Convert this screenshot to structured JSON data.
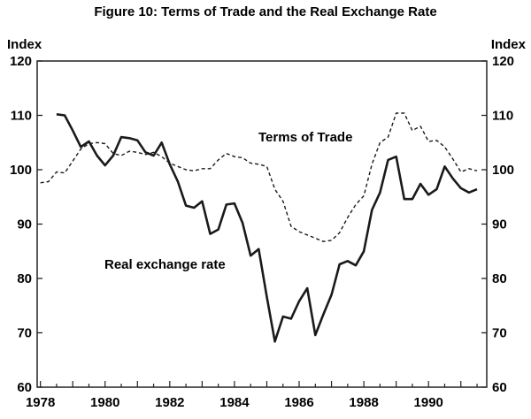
{
  "chart_data": {
    "type": "line",
    "title": "Figure 10: Terms of Trade and the Real Exchange Rate",
    "ylabel_left": "Index",
    "ylabel_right": "Index",
    "ylim": [
      60,
      120
    ],
    "xlim": [
      1977.9,
      1991.8
    ],
    "y_ticks": [
      60,
      70,
      80,
      90,
      100,
      110,
      120
    ],
    "x_ticks": [
      1978,
      1980,
      1982,
      1984,
      1986,
      1988,
      1990
    ],
    "grid": false,
    "annotations": [
      {
        "text": "Terms of Trade",
        "series": "tot"
      },
      {
        "text": "Real exchange rate",
        "series": "rer"
      }
    ],
    "series": [
      {
        "key": "rer",
        "style": "solid",
        "x": [
          1978.5,
          1978.75,
          1979.0,
          1979.25,
          1979.5,
          1979.75,
          1980.0,
          1980.25,
          1980.5,
          1980.75,
          1981.0,
          1981.25,
          1981.5,
          1981.75,
          1982.0,
          1982.25,
          1982.5,
          1982.75,
          1983.0,
          1983.25,
          1983.5,
          1983.75,
          1984.0,
          1984.25,
          1984.5,
          1984.75,
          1985.0,
          1985.25,
          1985.5,
          1985.75,
          1986.0,
          1986.25,
          1986.5,
          1986.75,
          1987.0,
          1987.25,
          1987.5,
          1987.75,
          1988.0,
          1988.25,
          1988.5,
          1988.75,
          1989.0,
          1989.25,
          1989.5,
          1989.75,
          1990.0,
          1990.25,
          1990.5,
          1990.75,
          1991.0,
          1991.25,
          1991.5
        ],
        "values": [
          110.2,
          110.0,
          107.2,
          104.2,
          105.2,
          102.6,
          100.8,
          102.6,
          106.0,
          105.8,
          105.4,
          103.2,
          102.6,
          105.0,
          101.0,
          97.8,
          93.4,
          93.0,
          94.2,
          88.2,
          89.0,
          93.6,
          93.8,
          90.2,
          84.2,
          85.4,
          76.6,
          68.4,
          73.0,
          72.6,
          75.8,
          78.2,
          69.6,
          73.4,
          77.0,
          82.6,
          83.2,
          82.4,
          85.0,
          92.6,
          95.8,
          101.8,
          102.4,
          94.6,
          94.6,
          97.4,
          95.4,
          96.4,
          100.6,
          98.4,
          96.6,
          95.8,
          96.4
        ]
      },
      {
        "key": "tot",
        "style": "dashed",
        "x": [
          1978.0,
          1978.25,
          1978.5,
          1978.75,
          1979.0,
          1979.25,
          1979.5,
          1979.75,
          1980.0,
          1980.25,
          1980.5,
          1980.75,
          1981.0,
          1981.25,
          1981.5,
          1981.75,
          1982.0,
          1982.25,
          1982.5,
          1982.75,
          1983.0,
          1983.25,
          1983.5,
          1983.75,
          1984.0,
          1984.25,
          1984.5,
          1984.75,
          1985.0,
          1985.25,
          1985.5,
          1985.75,
          1986.0,
          1986.25,
          1986.5,
          1986.75,
          1987.0,
          1987.25,
          1987.5,
          1987.75,
          1988.0,
          1988.25,
          1988.5,
          1988.75,
          1989.0,
          1989.25,
          1989.5,
          1989.75,
          1990.0,
          1990.25,
          1990.5,
          1990.75,
          1991.0,
          1991.25,
          1991.5
        ],
        "values": [
          97.6,
          97.8,
          99.6,
          99.4,
          101.6,
          103.8,
          104.8,
          105.0,
          104.8,
          103.0,
          102.6,
          103.4,
          103.2,
          102.8,
          103.2,
          102.4,
          101.2,
          100.6,
          100.0,
          99.8,
          100.2,
          100.2,
          101.8,
          103.0,
          102.4,
          102.2,
          101.2,
          101.0,
          100.6,
          96.4,
          94.2,
          89.6,
          88.6,
          88.0,
          87.4,
          86.8,
          87.0,
          88.4,
          91.2,
          93.6,
          95.2,
          101.0,
          105.0,
          106.0,
          110.4,
          110.4,
          107.2,
          108.0,
          105.2,
          105.4,
          104.2,
          102.0,
          99.6,
          100.2,
          99.8
        ]
      }
    ]
  }
}
